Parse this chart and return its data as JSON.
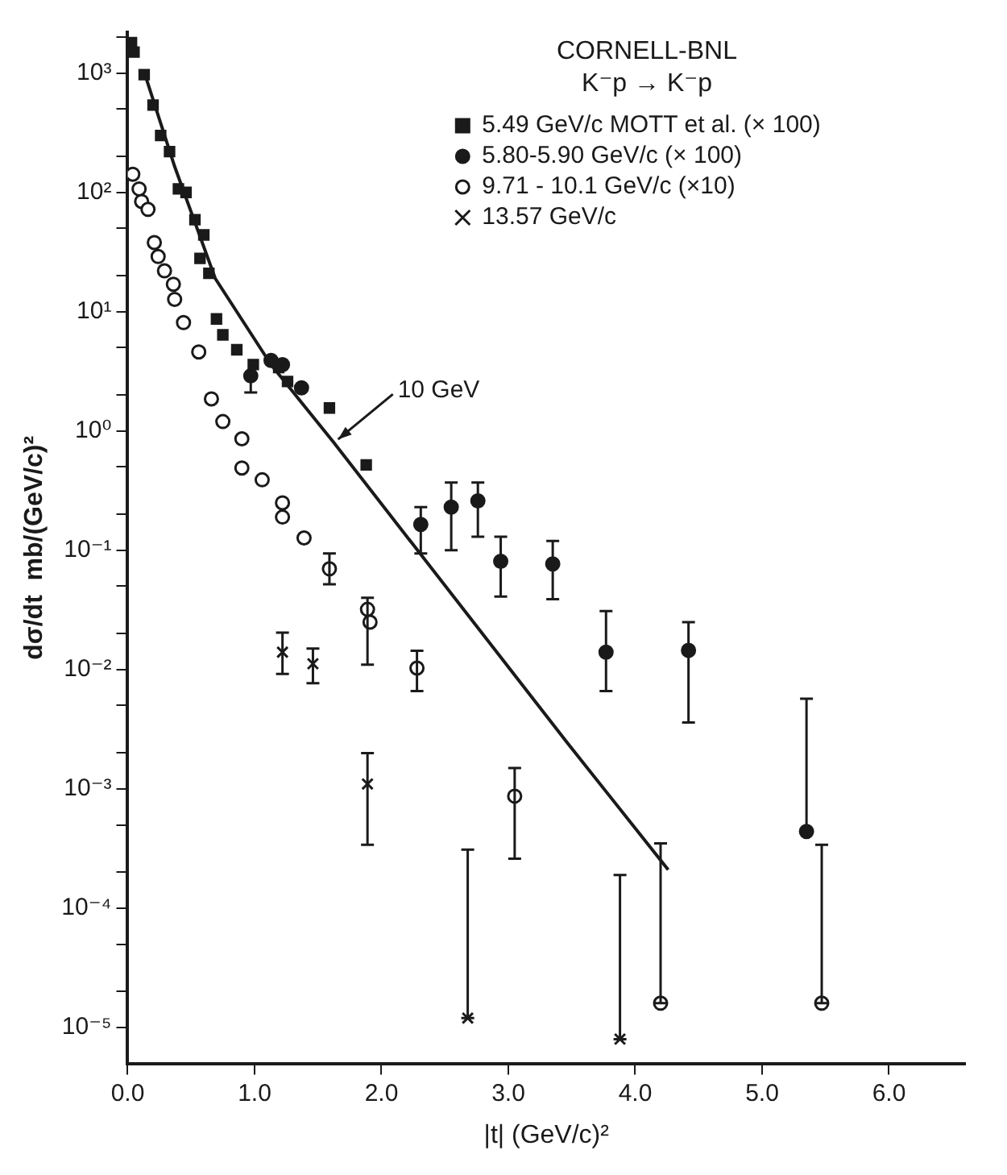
{
  "chart_data": {
    "type": "scatter",
    "title": "CORNELL-BNL",
    "subtitle": "K⁻p → K⁻p",
    "xlabel": "|t| (GeV/c)²",
    "ylabel": "dσ/dt  mb/(GeV/c)²",
    "log": "y",
    "grid": false,
    "legend": "top right",
    "xlim": [
      0,
      6.6
    ],
    "xticks": [
      {
        "value": 0,
        "label": "0.0"
      },
      {
        "value": 1,
        "label": "1.0"
      },
      {
        "value": 2,
        "label": "2.0"
      },
      {
        "value": 3,
        "label": "3.0"
      },
      {
        "value": 4,
        "label": "4.0"
      },
      {
        "value": 5,
        "label": "5.0"
      },
      {
        "value": 6,
        "label": "6.0"
      }
    ],
    "ylim": [
      5e-06,
      2200
    ],
    "yticks": [
      {
        "value": 1e-05,
        "label": "10⁻⁵"
      },
      {
        "value": 2e-05,
        "label": null
      },
      {
        "value": 5e-05,
        "label": null
      },
      {
        "value": 0.0001,
        "label": "10⁻⁴"
      },
      {
        "value": 0.0002,
        "label": null
      },
      {
        "value": 0.0005,
        "label": null
      },
      {
        "value": 0.001,
        "label": "10⁻³"
      },
      {
        "value": 0.002,
        "label": null
      },
      {
        "value": 0.005,
        "label": null
      },
      {
        "value": 0.01,
        "label": "10⁻²"
      },
      {
        "value": 0.02,
        "label": null
      },
      {
        "value": 0.05,
        "label": null
      },
      {
        "value": 0.1,
        "label": "10⁻¹"
      },
      {
        "value": 0.2,
        "label": null
      },
      {
        "value": 0.5,
        "label": null
      },
      {
        "value": 1,
        "label": "10⁰"
      },
      {
        "value": 2,
        "label": null
      },
      {
        "value": 5,
        "label": null
      },
      {
        "value": 10,
        "label": "10¹"
      },
      {
        "value": 20,
        "label": null
      },
      {
        "value": 50,
        "label": null
      },
      {
        "value": 100,
        "label": "10²"
      },
      {
        "value": 200,
        "label": null
      },
      {
        "value": 500,
        "label": null
      },
      {
        "value": 1000,
        "label": "10³"
      },
      {
        "value": 2000,
        "label": null
      }
    ],
    "annotations": [
      {
        "text": "10 GeV",
        "x": 1.62,
        "y": 0.8
      }
    ],
    "series": [
      {
        "name": "5.49 GeV/c MOTT et al. (× 100)",
        "color": "#1a1a1a",
        "marker": "square",
        "x": [
          0.03,
          0.05,
          0.13,
          0.2,
          0.26,
          0.33,
          0.4,
          0.46,
          0.53,
          0.57,
          0.6,
          0.64,
          0.7,
          0.75,
          0.86,
          0.99,
          1.19,
          1.26,
          1.59,
          1.88
        ],
        "values": [
          1800,
          1500,
          970,
          540,
          300,
          220,
          107,
          100,
          59,
          28,
          44,
          21,
          8.7,
          6.4,
          4.8,
          3.6,
          3.4,
          2.6,
          1.56,
          0.52
        ]
      },
      {
        "name": "5.80-5.90 GeV/c (× 100)",
        "color": "#1a1a1a",
        "marker": "circle",
        "x": [
          0.97,
          1.13,
          1.22,
          1.37,
          2.31,
          2.55,
          2.76,
          2.94,
          3.35,
          3.77,
          4.42,
          5.35
        ],
        "values": [
          2.9,
          3.9,
          3.6,
          2.3,
          0.165,
          0.23,
          0.26,
          0.081,
          0.077,
          0.014,
          0.0145,
          0.00044
        ],
        "errors": [
          [
            2.1,
            2.9
          ],
          null,
          null,
          null,
          [
            0.094,
            0.23
          ],
          [
            0.1,
            0.37
          ],
          [
            0.13,
            0.37
          ],
          [
            0.041,
            0.13
          ],
          [
            0.039,
            0.12
          ],
          [
            0.0066,
            0.031
          ],
          [
            0.0036,
            0.025
          ],
          [
            0.00044,
            0.0057
          ]
        ]
      },
      {
        "name": "9.71 - 10.1 GeV/c (×10)",
        "color": "#1a1a1a",
        "marker": "circle-open",
        "x": [
          0.04,
          0.09,
          0.11,
          0.16,
          0.21,
          0.24,
          0.29,
          0.36,
          0.37,
          0.44,
          0.56,
          0.66,
          0.75,
          0.9,
          0.9,
          1.06,
          1.22,
          1.22,
          1.39,
          1.59,
          1.89,
          1.91,
          2.28,
          3.05,
          4.2,
          5.47
        ],
        "values": [
          142,
          107,
          84,
          72,
          38,
          29,
          22,
          17,
          12.7,
          8.1,
          4.6,
          1.86,
          1.2,
          0.86,
          0.49,
          0.39,
          0.25,
          0.19,
          0.127,
          0.07,
          0.032,
          0.025,
          0.0103,
          0.00087,
          1.6e-05,
          1.6e-05
        ],
        "errors": [
          null,
          null,
          null,
          null,
          null,
          null,
          null,
          null,
          null,
          null,
          null,
          null,
          null,
          null,
          null,
          null,
          null,
          null,
          null,
          [
            0.052,
            0.094
          ],
          [
            0.011,
            0.04
          ],
          null,
          [
            0.0066,
            0.0144
          ],
          [
            0.00026,
            0.0015
          ],
          [
            1.6e-05,
            0.00035
          ],
          [
            1.6e-05,
            0.00034
          ]
        ]
      },
      {
        "name": "13.57 GeV/c",
        "color": "#1a1a1a",
        "marker": "cross",
        "x": [
          1.22,
          1.46,
          1.89,
          2.68,
          3.88
        ],
        "values": [
          0.014,
          0.0112,
          0.0011,
          1.2e-05,
          8e-06
        ],
        "errors": [
          [
            0.0092,
            0.0204
          ],
          [
            0.0077,
            0.015
          ],
          [
            0.00034,
            0.002
          ],
          [
            1.2e-05,
            0.00031
          ],
          [
            8e-06,
            0.00019
          ]
        ]
      },
      {
        "type": "line",
        "color": "#1a1a1a",
        "marker": "none",
        "x": [
          0.13,
          0.37,
          0.69,
          1.13,
          1.62,
          3.47,
          4.26
        ],
        "values": [
          1020,
          165,
          19,
          3.6,
          0.81,
          0.0024,
          0.00021
        ]
      }
    ]
  }
}
